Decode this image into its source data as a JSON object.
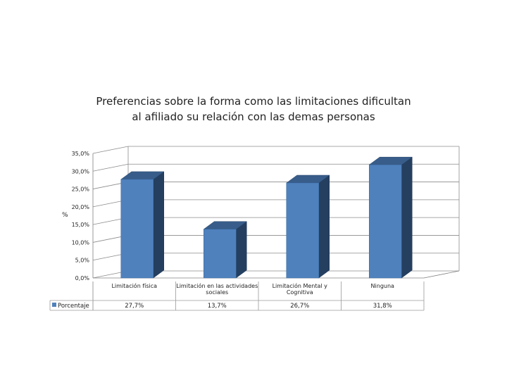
{
  "chart_data": {
    "type": "bar",
    "title_lines": [
      "Preferencias sobre la forma como las limitaciones dificultan",
      "al afiliado su relación con las demas personas"
    ],
    "ylabel": "%",
    "ylim": [
      0,
      35
    ],
    "yticks": [
      "0,0%",
      "5,0%",
      "10,0%",
      "15,0%",
      "20,0%",
      "25,0%",
      "30,0%",
      "35,0%"
    ],
    "categories": [
      [
        "Limitación física"
      ],
      [
        "Limitación en las actividades",
        "sociales"
      ],
      [
        "Limitación Mental y",
        "Cognitiva"
      ],
      [
        "Ninguna"
      ]
    ],
    "series": [
      {
        "name": "Porcentaje",
        "values": [
          27.7,
          13.7,
          26.7,
          31.8
        ],
        "labels": [
          "27,7%",
          "13,7%",
          "26,7%",
          "31,8%"
        ]
      }
    ],
    "grid": true,
    "data_table": true,
    "colors": {
      "front": "#4f81bd",
      "side": "#243f60",
      "top": "#385d8a",
      "grid": "#8c8c8c",
      "axis": "#808080"
    }
  }
}
